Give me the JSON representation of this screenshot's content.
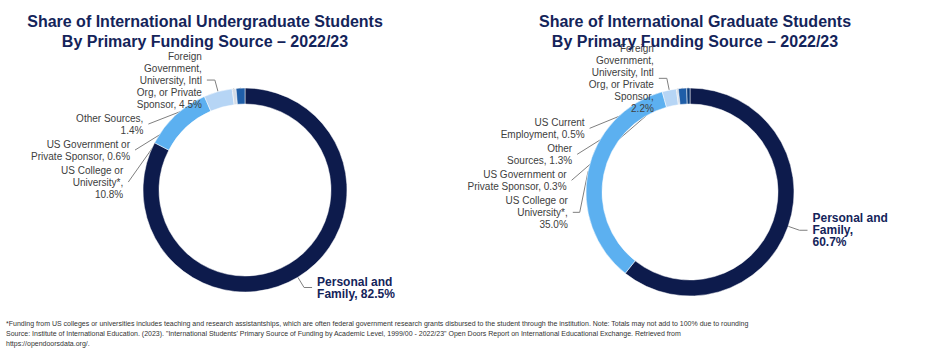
{
  "chart_data": [
    {
      "type": "pie",
      "title": "Share of International Undergraduate Students\nBy Primary Funding Source – 2022/23",
      "categories": [
        "Personal and Family",
        "US College or University*",
        "Foreign Government, University, Intl Org, or Private Sponsor",
        "US Government or Private Sponsor",
        "Other Sources"
      ],
      "values": [
        82.5,
        10.8,
        4.5,
        0.6,
        1.4
      ],
      "value_labels": [
        "Personal and\nFamily, 82.5%",
        "US College or\nUniversity*,\n10.8%",
        "Foreign\nGovernment,\nUniversity, Intl\nOrg, or Private\nSponsor, 4.5%",
        "US Government or\nPrivate Sponsor, 0.6%",
        "Other Sources,\n1.4%"
      ],
      "colors": [
        "#0d1b4c",
        "#5cb0f0",
        "#b6d5f5",
        "#d3dbe6",
        "#1f5ea8"
      ],
      "data_labels": true
    },
    {
      "type": "pie",
      "title": "Share of International Graduate Students\nBy Primary Funding Source – 2022/23",
      "categories": [
        "Personal and Family",
        "US College or University*",
        "Foreign Government, University, Intl Org, or Private Sponsor",
        "US Government or Private Sponsor",
        "Other Sources",
        "US Current Employment"
      ],
      "values": [
        60.7,
        35.0,
        2.2,
        0.3,
        1.3,
        0.5
      ],
      "value_labels": [
        "Personal and\nFamily,\n60.7%",
        "US College or\nUniversity*,\n35.0%",
        "Foreign\nGovernment,\nUniversity, Intl\nOrg, or Private\nSponsor,\n2.2%",
        "US Government or\nPrivate Sponsor, 0.3%",
        "Other\nSources, 1.3%",
        "US Current\nEmployment, 0.5%"
      ],
      "colors": [
        "#0d1b4c",
        "#5cb0f0",
        "#b6d5f5",
        "#d3dbe6",
        "#1f5ea8",
        "#0b3a78"
      ],
      "data_labels": true
    }
  ],
  "footnote": [
    "*Funding from US colleges or universities includes teaching and research assistantships, which are often federal government research grants disbursed to the student through the institution. Note: Totals may not add to 100% due to rounding",
    "Source: Institute of International Education. (2023). \"International Students' Primary Source of Funding by Academic Level, 1999/00 - 2022/23\" Open Doors Report on International Educational Exchange. Retrieved from",
    "https://opendoorsdata.org/."
  ]
}
